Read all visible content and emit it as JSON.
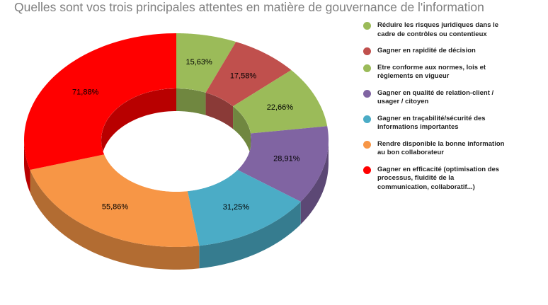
{
  "chart_data": {
    "type": "doughnut3d",
    "title": "Quelles sont vos trois principales attentes en matière de gouvernance de l'information",
    "categories": [
      "Réduire les risques juridiques dans le cadre de contrôles ou contentieux",
      "Gagner en rapidité de décision",
      "Etre conforme aux normes, lois et règlements en vigueur",
      "Gagner en qualité de relation-client / usager / citoyen",
      "Gagner en traçabilité/sécurité des informations importantes",
      "Rendre disponible la bonne information au bon collaborateur",
      "Gagner en efficacité (optimisation des processus, fluidité de la communication, collaboratif...)"
    ],
    "values": [
      15.63,
      17.58,
      22.66,
      28.91,
      31.25,
      55.86,
      71.88
    ],
    "value_labels": [
      "15,63%",
      "17,58%",
      "22,66%",
      "28,91%",
      "31,25%",
      "55,86%",
      "71,88%"
    ],
    "colors": [
      "#9bbb59",
      "#c0504d",
      "#9bbb59",
      "#8064a2",
      "#4bacc6",
      "#f79646",
      "#ff0000"
    ]
  }
}
